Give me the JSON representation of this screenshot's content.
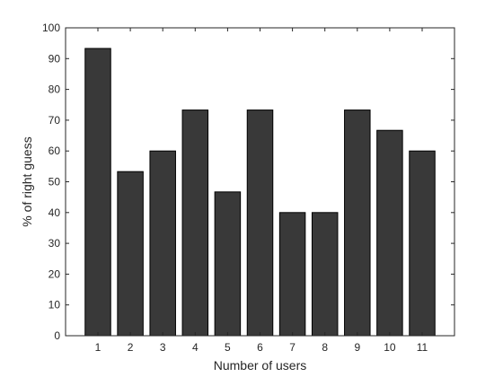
{
  "chart_data": {
    "type": "bar",
    "title": "",
    "xlabel": "Number of users",
    "ylabel": "% of right guess",
    "categories": [
      "1",
      "2",
      "3",
      "4",
      "5",
      "6",
      "7",
      "8",
      "9",
      "10",
      "11"
    ],
    "values": [
      93.3,
      53.3,
      60,
      73.3,
      46.7,
      73.3,
      40,
      40,
      73.3,
      66.7,
      60
    ],
    "ylim": [
      0,
      100
    ],
    "yticks": [
      "0",
      "10",
      "20",
      "30",
      "40",
      "50",
      "60",
      "70",
      "80",
      "90",
      "100"
    ],
    "grid": false,
    "bar_color": "#393939",
    "bar_edge_color": "#000000"
  }
}
